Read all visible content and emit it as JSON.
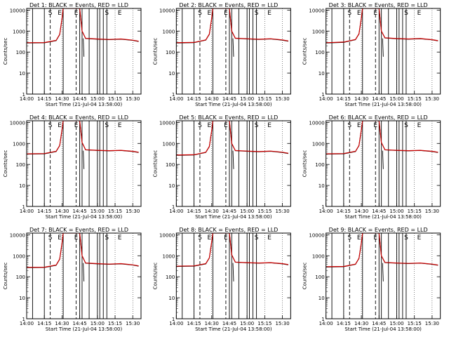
{
  "chart_data": [
    {
      "type": "line",
      "title": "Det 1: BLACK = Events, RED = LLD",
      "ylabel": "Counts/sec",
      "xlabel": "Start Time (21-Jul-04 13:58:00)",
      "xlim": [
        "14:00",
        "15:37"
      ],
      "yscale": "log",
      "ylim": [
        1,
        12000
      ],
      "grid": "dotted-verticals",
      "xticks": [
        "14:00",
        "14:15",
        "14:30",
        "14:45",
        "15:00",
        "15:15",
        "15:30"
      ],
      "yticks": [
        "1",
        "10",
        "100",
        "1000",
        "10000"
      ],
      "markers": [
        "S",
        "E",
        "E",
        "S",
        "E"
      ],
      "series": [
        {
          "color": "#cc0000",
          "x": [
            "14:00",
            "14:15",
            "14:25",
            "14:28",
            "14:30",
            "14:31",
            "14:45",
            "14:47",
            "14:50",
            "15:00",
            "15:10",
            "15:20",
            "15:30",
            "15:35"
          ],
          "y": [
            280,
            285,
            360,
            700,
            4000,
            12000,
            12000,
            1000,
            450,
            420,
            400,
            420,
            370,
            330
          ]
        },
        {
          "color": "#000000",
          "x": [
            "14:00",
            "14:15",
            "14:25",
            "14:28",
            "14:30",
            "14:31",
            "14:45",
            "14:47",
            "14:50",
            "15:00",
            "15:10",
            "15:20",
            "15:30",
            "15:35"
          ],
          "y": [
            270,
            275,
            350,
            680,
            3900,
            12000,
            12000,
            1000,
            440,
            410,
            390,
            410,
            360,
            320
          ]
        }
      ]
    },
    {
      "type": "line",
      "title": "Det 2: BLACK = Events, RED = LLD",
      "ylabel": "Counts/sec",
      "xlabel": "Start Time (21-Jul-04 13:58:00)",
      "xlim": [
        "14:00",
        "15:37"
      ],
      "yscale": "log",
      "ylim": [
        1,
        12000
      ],
      "grid": "dotted-verticals",
      "xticks": [
        "14:00",
        "14:15",
        "14:30",
        "14:45",
        "15:00",
        "15:15",
        "15:30"
      ],
      "yticks": [
        "1",
        "10",
        "100",
        "1000",
        "10000"
      ],
      "markers": [
        "S",
        "E",
        "E",
        "S",
        "E"
      ],
      "series": [
        {
          "color": "#cc0000",
          "x": [
            "14:00",
            "14:15",
            "14:25",
            "14:28",
            "14:30",
            "14:31",
            "14:45",
            "14:47",
            "14:50",
            "15:00",
            "15:10",
            "15:20",
            "15:30",
            "15:35"
          ],
          "y": [
            280,
            290,
            380,
            720,
            4000,
            12000,
            12000,
            1000,
            460,
            430,
            410,
            430,
            380,
            340
          ]
        },
        {
          "color": "#000000",
          "x": [
            "14:00",
            "14:15",
            "14:25",
            "14:28",
            "14:30",
            "14:31",
            "14:45",
            "14:47",
            "14:50",
            "15:00",
            "15:10",
            "15:20",
            "15:30",
            "15:35"
          ],
          "y": [
            270,
            280,
            370,
            700,
            3900,
            12000,
            12000,
            1000,
            450,
            420,
            400,
            420,
            370,
            330
          ]
        }
      ]
    },
    {
      "type": "line",
      "title": "Det 3: BLACK = Events, RED = LLD",
      "ylabel": "Counts/sec",
      "xlabel": "Start Time (21-Jul-04 13:58:00)",
      "xlim": [
        "14:00",
        "15:37"
      ],
      "yscale": "log",
      "ylim": [
        1,
        12000
      ],
      "grid": "dotted-verticals",
      "xticks": [
        "14:00",
        "14:15",
        "14:30",
        "14:45",
        "15:00",
        "15:15",
        "15:30"
      ],
      "yticks": [
        "1",
        "10",
        "100",
        "1000",
        "10000"
      ],
      "markers": [
        "S",
        "E",
        "E",
        "S",
        "E"
      ],
      "series": [
        {
          "color": "#cc0000",
          "x": [
            "14:00",
            "14:15",
            "14:25",
            "14:28",
            "14:30",
            "14:31",
            "14:45",
            "14:47",
            "14:50",
            "15:00",
            "15:10",
            "15:20",
            "15:30",
            "15:35"
          ],
          "y": [
            280,
            300,
            400,
            750,
            4200,
            12000,
            12000,
            1000,
            480,
            440,
            420,
            440,
            390,
            350
          ]
        },
        {
          "color": "#000000",
          "x": [
            "14:00",
            "14:15",
            "14:25",
            "14:28",
            "14:30",
            "14:31",
            "14:45",
            "14:47",
            "14:50",
            "15:00",
            "15:10",
            "15:20",
            "15:30",
            "15:35"
          ],
          "y": [
            270,
            290,
            390,
            730,
            4100,
            12000,
            12000,
            1000,
            470,
            430,
            410,
            430,
            380,
            340
          ]
        }
      ]
    },
    {
      "type": "line",
      "title": "Det 4: BLACK = Events, RED = LLD",
      "ylabel": "Counts/sec",
      "xlabel": "Start Time (21-Jul-04 13:58:00)",
      "xlim": [
        "14:00",
        "15:37"
      ],
      "yscale": "log",
      "ylim": [
        1,
        12000
      ],
      "grid": "dotted-verticals",
      "xticks": [
        "14:00",
        "14:15",
        "14:30",
        "14:45",
        "15:00",
        "15:15",
        "15:30"
      ],
      "yticks": [
        "1",
        "10",
        "100",
        "1000",
        "10000"
      ],
      "markers": [
        "S",
        "E",
        "E",
        "S",
        "E"
      ],
      "series": [
        {
          "color": "#cc0000",
          "x": [
            "14:00",
            "14:15",
            "14:25",
            "14:28",
            "14:30",
            "14:31",
            "14:45",
            "14:47",
            "14:50",
            "15:00",
            "15:10",
            "15:20",
            "15:30",
            "15:35"
          ],
          "y": [
            320,
            330,
            420,
            800,
            4500,
            12000,
            12000,
            1100,
            500,
            470,
            450,
            470,
            420,
            380
          ]
        },
        {
          "color": "#000000",
          "x": [
            "14:00",
            "14:15",
            "14:25",
            "14:28",
            "14:30",
            "14:31",
            "14:45",
            "14:47",
            "14:50",
            "15:00",
            "15:10",
            "15:20",
            "15:30",
            "15:35"
          ],
          "y": [
            310,
            320,
            410,
            780,
            4400,
            12000,
            12000,
            1100,
            490,
            460,
            440,
            460,
            410,
            370
          ]
        }
      ]
    },
    {
      "type": "line",
      "title": "Det 5: BLACK = Events, RED = LLD",
      "ylabel": "Counts/sec",
      "xlabel": "Start Time (21-Jul-04 13:58:00)",
      "xlim": [
        "14:00",
        "15:37"
      ],
      "yscale": "log",
      "ylim": [
        1,
        12000
      ],
      "grid": "dotted-verticals",
      "xticks": [
        "14:00",
        "14:15",
        "14:30",
        "14:45",
        "15:00",
        "15:15",
        "15:30"
      ],
      "yticks": [
        "1",
        "10",
        "100",
        "1000",
        "10000"
      ],
      "markers": [
        "S",
        "E",
        "E",
        "S",
        "E"
      ],
      "series": [
        {
          "color": "#cc0000",
          "x": [
            "14:00",
            "14:15",
            "14:25",
            "14:28",
            "14:30",
            "14:31",
            "14:45",
            "14:47",
            "14:50",
            "15:00",
            "15:10",
            "15:20",
            "15:30",
            "15:35"
          ],
          "y": [
            280,
            290,
            380,
            720,
            4000,
            12000,
            12000,
            1000,
            460,
            430,
            410,
            430,
            380,
            340
          ]
        },
        {
          "color": "#000000",
          "x": [
            "14:00",
            "14:15",
            "14:25",
            "14:28",
            "14:30",
            "14:31",
            "14:45",
            "14:47",
            "14:50",
            "15:00",
            "15:10",
            "15:20",
            "15:30",
            "15:35"
          ],
          "y": [
            270,
            280,
            370,
            700,
            3900,
            12000,
            12000,
            1000,
            450,
            420,
            400,
            420,
            370,
            330
          ]
        }
      ]
    },
    {
      "type": "line",
      "title": "Det 6: BLACK = Events, RED = LLD",
      "ylabel": "Counts/sec",
      "xlabel": "Start Time (21-Jul-04 13:58:00)",
      "xlim": [
        "14:00",
        "15:37"
      ],
      "yscale": "log",
      "ylim": [
        1,
        12000
      ],
      "grid": "dotted-verticals",
      "xticks": [
        "14:00",
        "14:15",
        "14:30",
        "14:45",
        "15:00",
        "15:15",
        "15:30"
      ],
      "yticks": [
        "1",
        "10",
        "100",
        "1000",
        "10000"
      ],
      "markers": [
        "S",
        "E",
        "E",
        "S",
        "E"
      ],
      "series": [
        {
          "color": "#cc0000",
          "x": [
            "14:00",
            "14:15",
            "14:25",
            "14:28",
            "14:30",
            "14:31",
            "14:45",
            "14:47",
            "14:50",
            "15:00",
            "15:10",
            "15:20",
            "15:30",
            "15:35"
          ],
          "y": [
            320,
            330,
            420,
            800,
            4500,
            12000,
            12000,
            1100,
            500,
            470,
            450,
            470,
            420,
            380
          ]
        },
        {
          "color": "#000000",
          "x": [
            "14:00",
            "14:15",
            "14:25",
            "14:28",
            "14:30",
            "14:31",
            "14:45",
            "14:47",
            "14:50",
            "15:00",
            "15:10",
            "15:20",
            "15:30",
            "15:35"
          ],
          "y": [
            310,
            320,
            410,
            780,
            4400,
            12000,
            12000,
            1100,
            490,
            460,
            440,
            460,
            410,
            370
          ]
        }
      ]
    },
    {
      "type": "line",
      "title": "Det 7: BLACK = Events, RED = LLD",
      "ylabel": "Counts/sec",
      "xlabel": "Start Time (21-Jul-04 13:58:00)",
      "xlim": [
        "14:00",
        "15:37"
      ],
      "yscale": "log",
      "ylim": [
        1,
        12000
      ],
      "grid": "dotted-verticals",
      "xticks": [
        "14:00",
        "14:15",
        "14:30",
        "14:45",
        "15:00",
        "15:15",
        "15:30"
      ],
      "yticks": [
        "1",
        "10",
        "100",
        "1000",
        "10000"
      ],
      "markers": [
        "S",
        "E",
        "E",
        "S",
        "E"
      ],
      "series": [
        {
          "color": "#cc0000",
          "x": [
            "14:00",
            "14:15",
            "14:25",
            "14:28",
            "14:30",
            "14:31",
            "14:45",
            "14:47",
            "14:50",
            "15:00",
            "15:10",
            "15:20",
            "15:30",
            "15:35"
          ],
          "y": [
            280,
            285,
            360,
            700,
            4000,
            12000,
            12000,
            1000,
            450,
            420,
            400,
            420,
            370,
            330
          ]
        },
        {
          "color": "#000000",
          "x": [
            "14:00",
            "14:15",
            "14:25",
            "14:28",
            "14:30",
            "14:31",
            "14:45",
            "14:47",
            "14:50",
            "15:00",
            "15:10",
            "15:20",
            "15:30",
            "15:35"
          ],
          "y": [
            270,
            275,
            350,
            680,
            3900,
            12000,
            12000,
            1000,
            440,
            410,
            390,
            410,
            360,
            320
          ]
        }
      ]
    },
    {
      "type": "line",
      "title": "Det 8: BLACK = Events, RED = LLD",
      "ylabel": "Counts/sec",
      "xlabel": "Start Time (21-Jul-04 13:58:00)",
      "xlim": [
        "14:00",
        "15:37"
      ],
      "yscale": "log",
      "ylim": [
        1,
        12000
      ],
      "grid": "dotted-verticals",
      "xticks": [
        "14:00",
        "14:15",
        "14:30",
        "14:45",
        "15:00",
        "15:15",
        "15:30"
      ],
      "yticks": [
        "1",
        "10",
        "100",
        "1000",
        "10000"
      ],
      "markers": [
        "S",
        "E",
        "E",
        "S",
        "E"
      ],
      "series": [
        {
          "color": "#cc0000",
          "x": [
            "14:00",
            "14:15",
            "14:25",
            "14:28",
            "14:30",
            "14:31",
            "14:45",
            "14:47",
            "14:50",
            "15:00",
            "15:10",
            "15:20",
            "15:30",
            "15:35"
          ],
          "y": [
            320,
            330,
            420,
            800,
            4500,
            12000,
            12000,
            1100,
            500,
            470,
            450,
            470,
            420,
            380
          ]
        },
        {
          "color": "#000000",
          "x": [
            "14:00",
            "14:15",
            "14:25",
            "14:28",
            "14:30",
            "14:31",
            "14:45",
            "14:47",
            "14:50",
            "15:00",
            "15:10",
            "15:20",
            "15:30",
            "15:35"
          ],
          "y": [
            310,
            320,
            410,
            780,
            4400,
            12000,
            12000,
            1100,
            490,
            460,
            440,
            460,
            410,
            370
          ]
        }
      ]
    },
    {
      "type": "line",
      "title": "Det 9: BLACK = Events, RED = LLD",
      "ylabel": "Counts/sec",
      "xlabel": "Start Time (21-Jul-04 13:58:00)",
      "xlim": [
        "14:00",
        "15:37"
      ],
      "yscale": "log",
      "ylim": [
        1,
        12000
      ],
      "grid": "dotted-verticals",
      "xticks": [
        "14:00",
        "14:15",
        "14:30",
        "14:45",
        "15:00",
        "15:15",
        "15:30"
      ],
      "yticks": [
        "1",
        "10",
        "100",
        "1000",
        "10000"
      ],
      "markers": [
        "S",
        "E",
        "E",
        "S",
        "E"
      ],
      "series": [
        {
          "color": "#cc0000",
          "x": [
            "14:00",
            "14:15",
            "14:25",
            "14:28",
            "14:30",
            "14:31",
            "14:45",
            "14:47",
            "14:50",
            "15:00",
            "15:10",
            "15:20",
            "15:30",
            "15:35"
          ],
          "y": [
            300,
            310,
            400,
            760,
            4200,
            12000,
            12000,
            1000,
            480,
            450,
            430,
            450,
            400,
            360
          ]
        },
        {
          "color": "#000000",
          "x": [
            "14:00",
            "14:15",
            "14:25",
            "14:28",
            "14:30",
            "14:31",
            "14:45",
            "14:47",
            "14:50",
            "15:00",
            "15:10",
            "15:20",
            "15:30",
            "15:35"
          ],
          "y": [
            290,
            300,
            390,
            740,
            4100,
            12000,
            12000,
            1000,
            470,
            440,
            420,
            440,
            390,
            350
          ]
        }
      ]
    }
  ]
}
